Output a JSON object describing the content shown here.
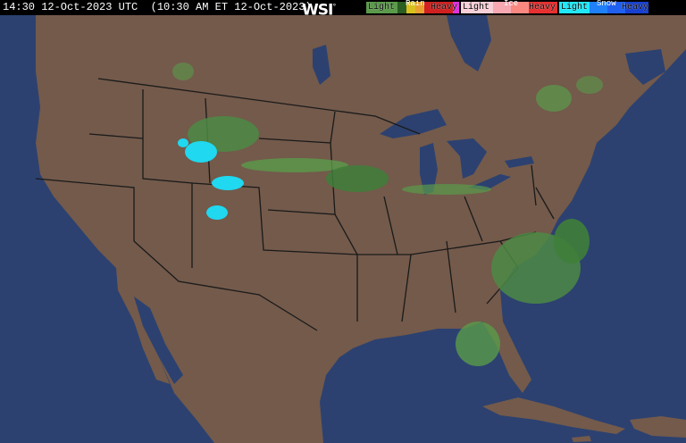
{
  "header": {
    "timestamp": "14:30 12-Oct-2023 UTC  (10:30 AM ET 12-Oct-2023)",
    "logo": "WSI",
    "legend": [
      {
        "type": "Rain",
        "light": "Light",
        "heavy": "Heavy",
        "colors": [
          "#5a9a4a",
          "#3f7f3a",
          "#2a5e22",
          "#d8c020",
          "#e8a030",
          "#d02020",
          "#a01010",
          "#e030e0"
        ]
      },
      {
        "type": "Ice",
        "light": "Light",
        "heavy": "Heavy",
        "colors": [
          "#f8d0d8",
          "#f8a8b0",
          "#f88880",
          "#f06060",
          "#e83030",
          "#e01010"
        ]
      },
      {
        "type": "Snow",
        "light": "Light",
        "heavy": "Heavy",
        "colors": [
          "#20e8f8",
          "#20b8f8",
          "#2080f8",
          "#2060f0",
          "#1840d0",
          "#1020a0"
        ]
      }
    ]
  },
  "map": {
    "land_color": "#735a4b",
    "water_color": "#2c4170",
    "border_color": "#1a1a1a"
  }
}
